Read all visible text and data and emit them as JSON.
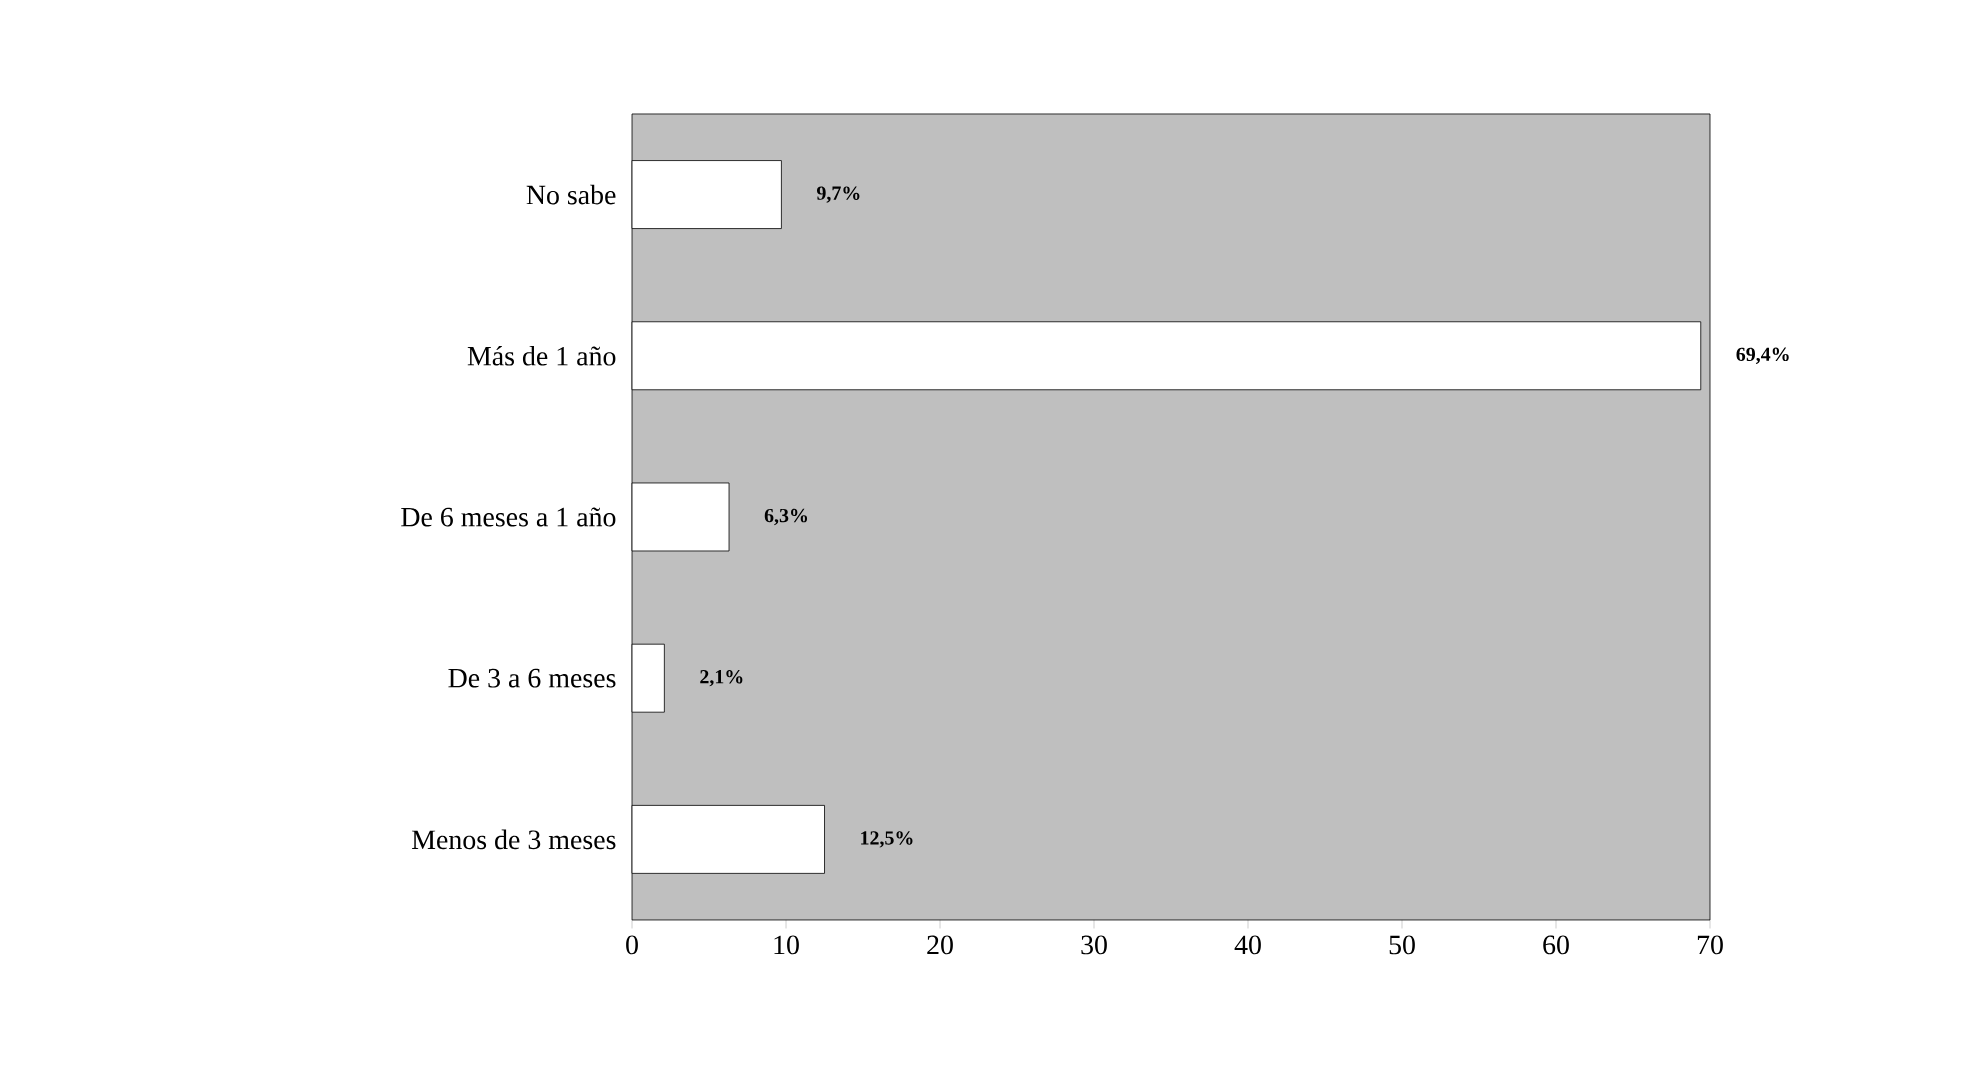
{
  "chart_data": {
    "type": "bar",
    "orientation": "horizontal",
    "categories": [
      "No sabe",
      "Más de 1 año",
      "De 6 meses a 1 año",
      "De 3 a 6 meses",
      "Menos de 3 meses"
    ],
    "values": [
      9.7,
      69.4,
      6.3,
      2.1,
      12.5
    ],
    "value_labels": [
      "9,7%",
      "69,4%",
      "6,3%",
      "2,1%",
      "12,5%"
    ],
    "color": "#ffffff",
    "xlim": [
      0,
      70
    ],
    "xticks": [
      0,
      10,
      20,
      30,
      40,
      50,
      60,
      70
    ]
  }
}
